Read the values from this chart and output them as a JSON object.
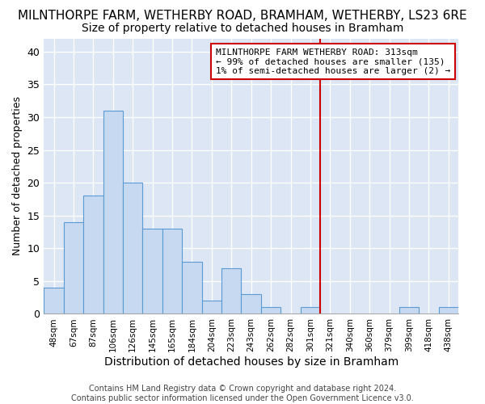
{
  "title": "MILNTHORPE FARM, WETHERBY ROAD, BRAMHAM, WETHERBY, LS23 6RE",
  "subtitle": "Size of property relative to detached houses in Bramham",
  "xlabel": "Distribution of detached houses by size in Bramham",
  "ylabel": "Number of detached properties",
  "categories": [
    "48sqm",
    "67sqm",
    "87sqm",
    "106sqm",
    "126sqm",
    "145sqm",
    "165sqm",
    "184sqm",
    "204sqm",
    "223sqm",
    "243sqm",
    "262sqm",
    "282sqm",
    "301sqm",
    "321sqm",
    "340sqm",
    "360sqm",
    "379sqm",
    "399sqm",
    "418sqm",
    "438sqm"
  ],
  "values": [
    4,
    14,
    18,
    31,
    20,
    13,
    13,
    8,
    2,
    7,
    3,
    1,
    0,
    1,
    0,
    0,
    0,
    0,
    1,
    0,
    1
  ],
  "bar_color": "#c6d9f0",
  "bar_edge_color": "#5b9bd5",
  "vline_color": "#cc0000",
  "vline_index": 14.5,
  "annotation_text": "MILNTHORPE FARM WETHERBY ROAD: 313sqm\n← 99% of detached houses are smaller (135)\n1% of semi-detached houses are larger (2) →",
  "annotation_box_color": "#ffffff",
  "annotation_box_edge_color": "#cc0000",
  "ylim": [
    0,
    42
  ],
  "yticks": [
    0,
    5,
    10,
    15,
    20,
    25,
    30,
    35,
    40
  ],
  "background_color": "#dce6f5",
  "footer": "Contains HM Land Registry data © Crown copyright and database right 2024.\nContains public sector information licensed under the Open Government Licence v3.0.",
  "title_fontsize": 11,
  "subtitle_fontsize": 10,
  "xlabel_fontsize": 10,
  "ylabel_fontsize": 9,
  "footer_fontsize": 7
}
